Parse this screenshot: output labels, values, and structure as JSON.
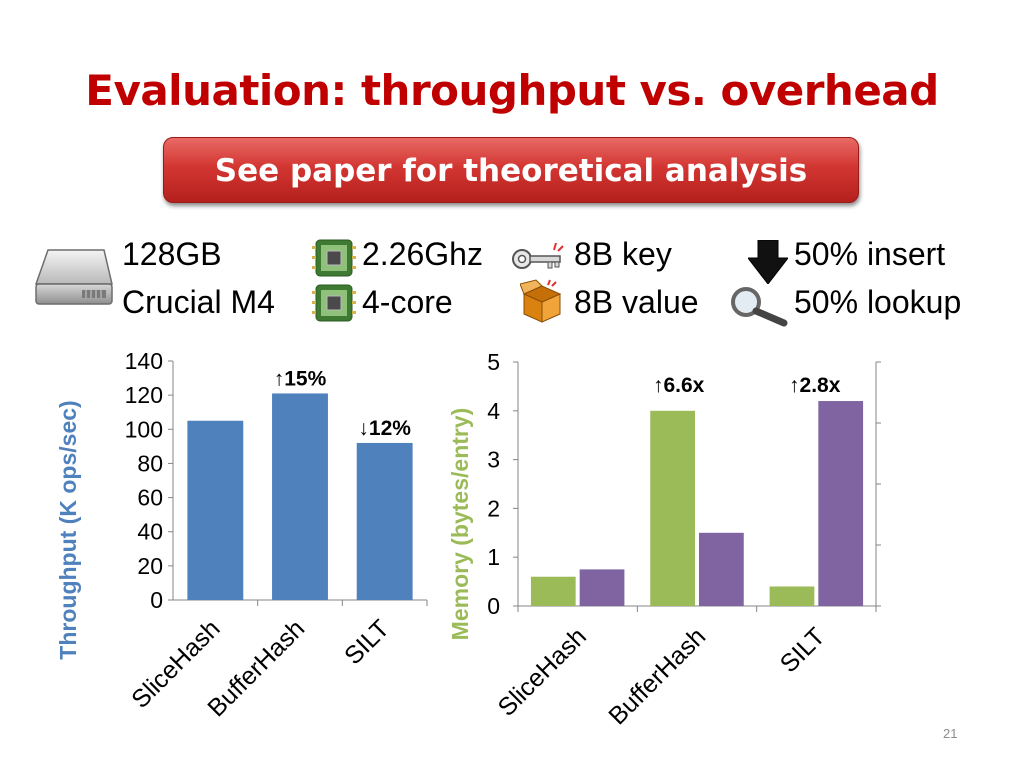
{
  "slide": {
    "title": "Evaluation: throughput vs. overhead",
    "banner": "See paper for theoretical analysis",
    "page_number": "21"
  },
  "specs": {
    "disk_size": "128GB",
    "disk_model": "Crucial M4",
    "cpu_speed": "2.26Ghz",
    "cpu_cores": "4-core",
    "key_size": "8B key",
    "value_size": "8B value",
    "insert_ratio": "50% insert",
    "lookup_ratio": "50% lookup"
  },
  "icons": {
    "disk": "hard-drive-icon",
    "cpu": "cpu-chip-icon",
    "key": "key-icon",
    "value": "box-icon",
    "insert": "down-arrow-icon",
    "lookup": "magnifier-icon"
  },
  "colors": {
    "title": "#c00000",
    "throughput_bar": "#4f81bd",
    "memory_bar_green": "#9bbb59",
    "memory_bar_purple": "#8064a2"
  },
  "chart_data": [
    {
      "type": "bar",
      "ylabel": "Throughput (K ops/sec)",
      "categories": [
        "SliceHash",
        "BufferHash",
        "SILT"
      ],
      "values": [
        105,
        121,
        92
      ],
      "ylim": [
        0,
        140
      ],
      "yticks": [
        "0",
        "20",
        "40",
        "60",
        "80",
        "100",
        "120",
        "140"
      ],
      "annotations": [
        "↑15%",
        "↓12%"
      ],
      "grid": false
    },
    {
      "type": "bar",
      "ylabel": "Memory (bytes/entry)",
      "categories": [
        "SliceHash",
        "BufferHash",
        "SILT"
      ],
      "series": [
        {
          "values": [
            0.6,
            4.0,
            0.4
          ]
        },
        {
          "values": [
            0.75,
            1.5,
            4.2
          ]
        }
      ],
      "ylim": [
        0,
        5
      ],
      "yticks": [
        "0",
        "1",
        "2",
        "3",
        "4",
        "5"
      ],
      "annotations": [
        "↑6.6x",
        "↑2.8x"
      ],
      "grid": false
    }
  ]
}
